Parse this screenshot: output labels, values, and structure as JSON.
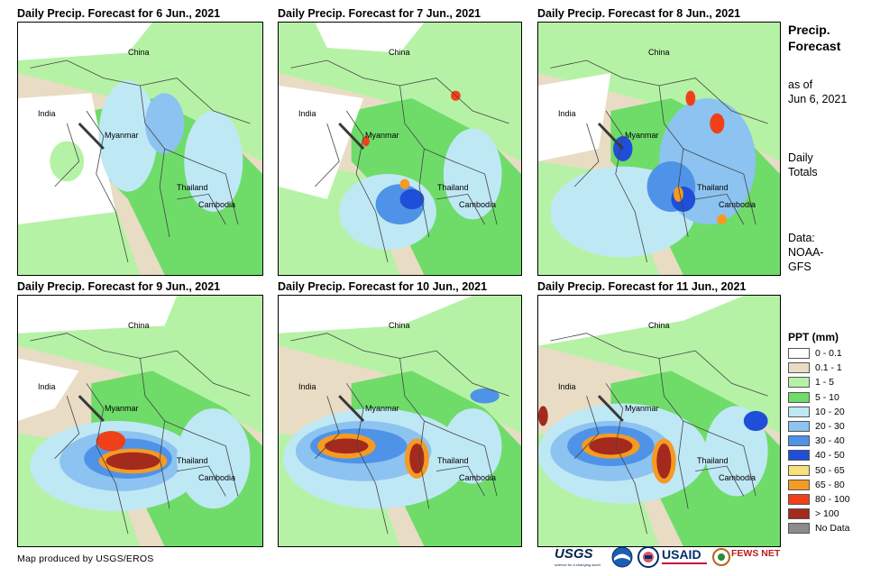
{
  "panels": [
    {
      "title": "Daily Precip. Forecast for 6 Jun., 2021",
      "countries": [
        "China",
        "India",
        "Myanmar",
        "Thailand",
        "Cambodia"
      ]
    },
    {
      "title": "Daily Precip. Forecast for 7 Jun., 2021",
      "countries": [
        "China",
        "India",
        "Myanmar",
        "Thailand",
        "Cambodia"
      ]
    },
    {
      "title": "Daily Precip. Forecast for 8 Jun., 2021",
      "countries": [
        "China",
        "India",
        "Myanmar",
        "Thailand",
        "Cambodia"
      ]
    },
    {
      "title": "Daily Precip. Forecast for 9 Jun., 2021",
      "countries": [
        "China",
        "India",
        "Myanmar",
        "Thailand",
        "Cambodia"
      ]
    },
    {
      "title": "Daily Precip. Forecast for 10 Jun., 2021",
      "countries": [
        "China",
        "India",
        "Myanmar",
        "Thailand",
        "Cambodia"
      ]
    },
    {
      "title": "Daily Precip. Forecast for 11 Jun., 2021",
      "countries": [
        "China",
        "India",
        "Myanmar",
        "Thailand",
        "Cambodia"
      ]
    }
  ],
  "sidebar": {
    "title_line1": "Precip.",
    "title_line2": "Forecast",
    "asof_line1": "as of",
    "asof_line2": "Jun 6, 2021",
    "totals_line1": "Daily",
    "totals_line2": "Totals",
    "data_line1": "Data:",
    "data_line2": "NOAA-",
    "data_line3": "GFS"
  },
  "legend": {
    "title": "PPT (mm)",
    "items": [
      {
        "label": "0 - 0.1",
        "color": "#ffffff"
      },
      {
        "label": "0.1 - 1",
        "color": "#e9dcc4"
      },
      {
        "label": "1 - 5",
        "color": "#b6f2a6"
      },
      {
        "label": "5 - 10",
        "color": "#6fdc6a"
      },
      {
        "label": "10 - 20",
        "color": "#bfe8f5"
      },
      {
        "label": "20 - 30",
        "color": "#8cc3f0"
      },
      {
        "label": "30 - 40",
        "color": "#4f93e8"
      },
      {
        "label": "40 - 50",
        "color": "#1f4fd8"
      },
      {
        "label": "50 - 65",
        "color": "#f8e07a"
      },
      {
        "label": "65 - 80",
        "color": "#f59a22"
      },
      {
        "label": "80 - 100",
        "color": "#f0401a"
      },
      {
        "label": "> 100",
        "color": "#a52a1e"
      },
      {
        "label": "No Data",
        "color": "#8c8c8c"
      }
    ]
  },
  "credit": "Map produced by USGS/EROS",
  "logos": {
    "usgs": "USGS",
    "usgs_tagline": "science for a changing world",
    "usaid": "USAID",
    "fewsnet": "FEWS NET"
  }
}
